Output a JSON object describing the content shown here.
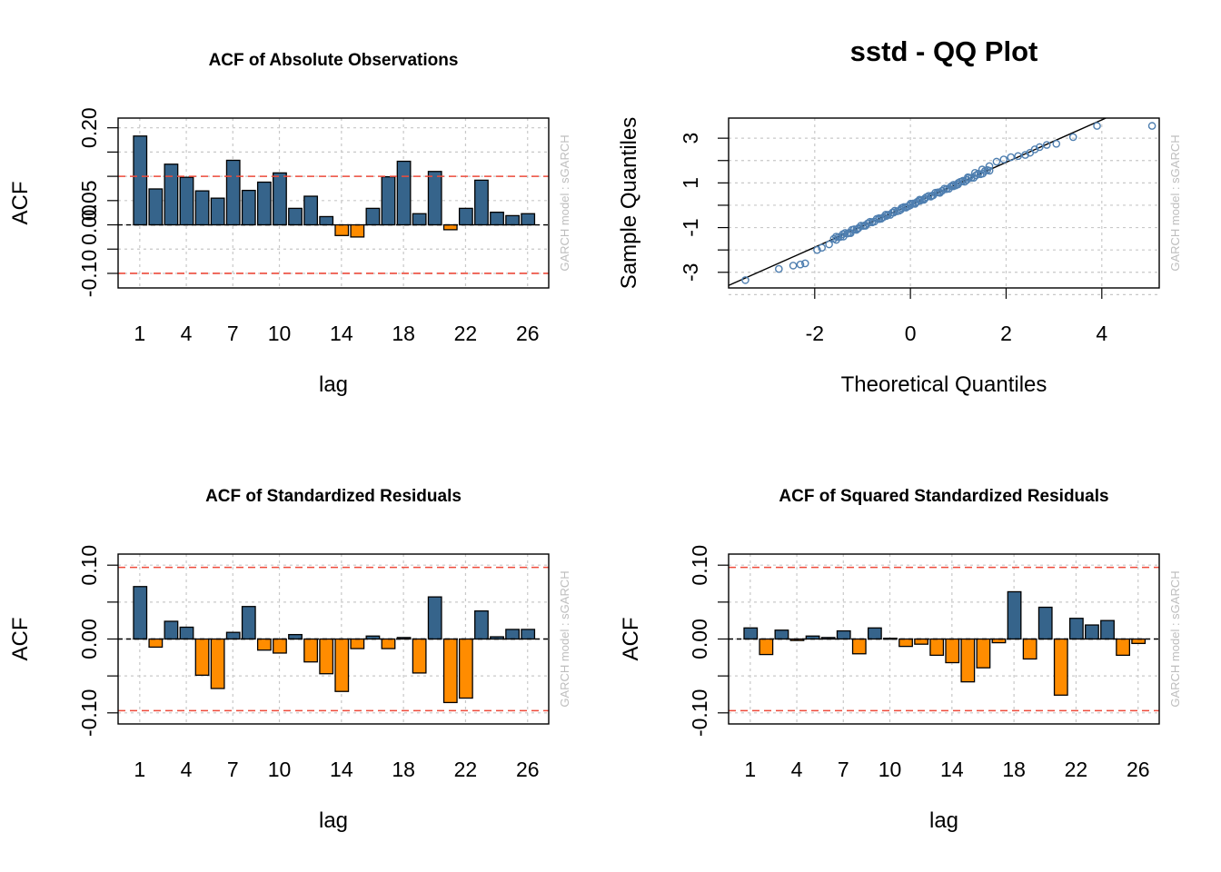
{
  "watermark": "GARCH model :  sGARCH",
  "colors": {
    "positive_bar": "#36648B",
    "negative_bar": "#FF8C00",
    "bar_border": "#000000",
    "conf_line": "#EE4B3B",
    "grid": "#C8C8C8",
    "qq_points": "#4F7FB0",
    "watermark": "#BEBEBE"
  },
  "chart_data": [
    {
      "type": "bar",
      "title": "ACF of Absolute Observations",
      "xlabel": "lag",
      "ylabel": "ACF",
      "ylim": [
        -0.13,
        0.22
      ],
      "yticks": [
        -0.1,
        -0.05,
        0.0,
        0.05,
        0.1,
        0.15,
        0.2
      ],
      "ytick_labels": [
        "-0.10",
        "",
        "0.00",
        "0.05",
        "",
        "",
        "0.20"
      ],
      "xticks": [
        1,
        4,
        7,
        10,
        14,
        18,
        22,
        26
      ],
      "conf_bound": 0.1,
      "grid": true,
      "lags": [
        1,
        2,
        3,
        4,
        5,
        6,
        7,
        8,
        9,
        10,
        11,
        12,
        13,
        14,
        15,
        16,
        17,
        18,
        19,
        20,
        21,
        22,
        23,
        24,
        25,
        26
      ],
      "values": [
        0.183,
        0.074,
        0.125,
        0.098,
        0.07,
        0.055,
        0.133,
        0.071,
        0.088,
        0.107,
        0.034,
        0.059,
        0.017,
        -0.022,
        -0.025,
        0.034,
        0.099,
        0.131,
        0.023,
        0.11,
        -0.01,
        0.034,
        0.092,
        0.026,
        0.019,
        0.023
      ]
    },
    {
      "type": "scatter",
      "title": "sstd - QQ Plot",
      "xlabel": "Theoretical Quantiles",
      "ylabel": "Sample Quantiles",
      "xlim": [
        -3.8,
        5.2
      ],
      "ylim": [
        -3.7,
        3.9
      ],
      "xticks": [
        -2,
        0,
        2,
        4
      ],
      "yticks": [
        -3,
        -1,
        1,
        3
      ],
      "minor_ygrid": [
        -4,
        -3,
        -2,
        -1,
        0,
        1,
        2,
        3
      ],
      "grid": true,
      "reference_line": {
        "intercept": 0.02,
        "slope": 0.95
      },
      "points": [
        [
          -3.45,
          -3.35
        ],
        [
          -2.75,
          -2.85
        ],
        [
          -2.45,
          -2.7
        ],
        [
          -2.3,
          -2.65
        ],
        [
          -2.2,
          -2.6
        ],
        [
          -1.95,
          -2.0
        ],
        [
          -1.85,
          -1.9
        ],
        [
          -1.7,
          -1.75
        ],
        [
          -1.55,
          -1.55
        ],
        [
          -1.4,
          -1.4
        ],
        [
          -1.25,
          -1.25
        ],
        [
          -1.1,
          -1.05
        ],
        [
          -0.95,
          -0.9
        ],
        [
          -0.8,
          -0.75
        ],
        [
          -0.65,
          -0.62
        ],
        [
          -0.5,
          -0.48
        ],
        [
          -0.35,
          -0.33
        ],
        [
          -0.2,
          -0.2
        ],
        [
          -0.1,
          -0.08
        ],
        [
          0.0,
          0.0
        ],
        [
          0.1,
          0.1
        ],
        [
          0.2,
          0.2
        ],
        [
          0.3,
          0.3
        ],
        [
          0.45,
          0.43
        ],
        [
          0.6,
          0.58
        ],
        [
          0.75,
          0.72
        ],
        [
          0.9,
          0.85
        ],
        [
          1.0,
          1.0
        ],
        [
          1.1,
          1.1
        ],
        [
          1.2,
          1.25
        ],
        [
          1.35,
          1.45
        ],
        [
          1.5,
          1.6
        ],
        [
          1.65,
          1.75
        ],
        [
          1.8,
          1.95
        ],
        [
          1.95,
          2.05
        ],
        [
          2.1,
          2.15
        ],
        [
          2.25,
          2.2
        ],
        [
          2.4,
          2.25
        ],
        [
          2.5,
          2.35
        ],
        [
          2.6,
          2.5
        ],
        [
          2.7,
          2.6
        ],
        [
          2.85,
          2.7
        ],
        [
          3.05,
          2.75
        ],
        [
          3.4,
          3.05
        ],
        [
          3.9,
          3.55
        ],
        [
          5.05,
          3.55
        ]
      ]
    },
    {
      "type": "bar",
      "title": "ACF of Standardized Residuals",
      "xlabel": "lag",
      "ylabel": "ACF",
      "ylim": [
        -0.115,
        0.115
      ],
      "yticks": [
        -0.1,
        -0.05,
        0.0,
        0.05,
        0.1
      ],
      "ytick_labels": [
        "-0.10",
        "",
        "0.00",
        "",
        "0.10"
      ],
      "xticks": [
        1,
        4,
        7,
        10,
        14,
        18,
        22,
        26
      ],
      "conf_bound": 0.097,
      "grid": true,
      "lags": [
        1,
        2,
        3,
        4,
        5,
        6,
        7,
        8,
        9,
        10,
        11,
        12,
        13,
        14,
        15,
        16,
        17,
        18,
        19,
        20,
        21,
        22,
        23,
        24,
        25,
        26
      ],
      "values": [
        0.071,
        -0.011,
        0.024,
        0.016,
        -0.049,
        -0.067,
        0.009,
        0.044,
        -0.015,
        -0.019,
        0.006,
        -0.031,
        -0.047,
        -0.071,
        -0.013,
        0.004,
        -0.013,
        0.002,
        -0.046,
        0.057,
        -0.086,
        -0.08,
        0.038,
        0.003,
        0.013,
        0.013
      ]
    },
    {
      "type": "bar",
      "title": "ACF of Squared Standardized Residuals",
      "xlabel": "lag",
      "ylabel": "ACF",
      "ylim": [
        -0.115,
        0.115
      ],
      "yticks": [
        -0.1,
        -0.05,
        0.0,
        0.05,
        0.1
      ],
      "ytick_labels": [
        "-0.10",
        "",
        "0.00",
        "",
        "0.10"
      ],
      "xticks": [
        1,
        4,
        7,
        10,
        14,
        18,
        22,
        26
      ],
      "conf_bound": 0.097,
      "grid": true,
      "lags": [
        1,
        2,
        3,
        4,
        5,
        6,
        7,
        8,
        9,
        10,
        11,
        12,
        13,
        14,
        15,
        16,
        17,
        18,
        19,
        20,
        21,
        22,
        23,
        24,
        25,
        26
      ],
      "values": [
        0.015,
        -0.021,
        0.012,
        -0.002,
        0.004,
        0.002,
        0.011,
        -0.02,
        0.015,
        0.001,
        -0.01,
        -0.007,
        -0.022,
        -0.032,
        -0.058,
        -0.039,
        -0.005,
        0.064,
        -0.027,
        0.043,
        -0.076,
        0.028,
        0.019,
        0.025,
        -0.022,
        -0.006
      ]
    }
  ]
}
